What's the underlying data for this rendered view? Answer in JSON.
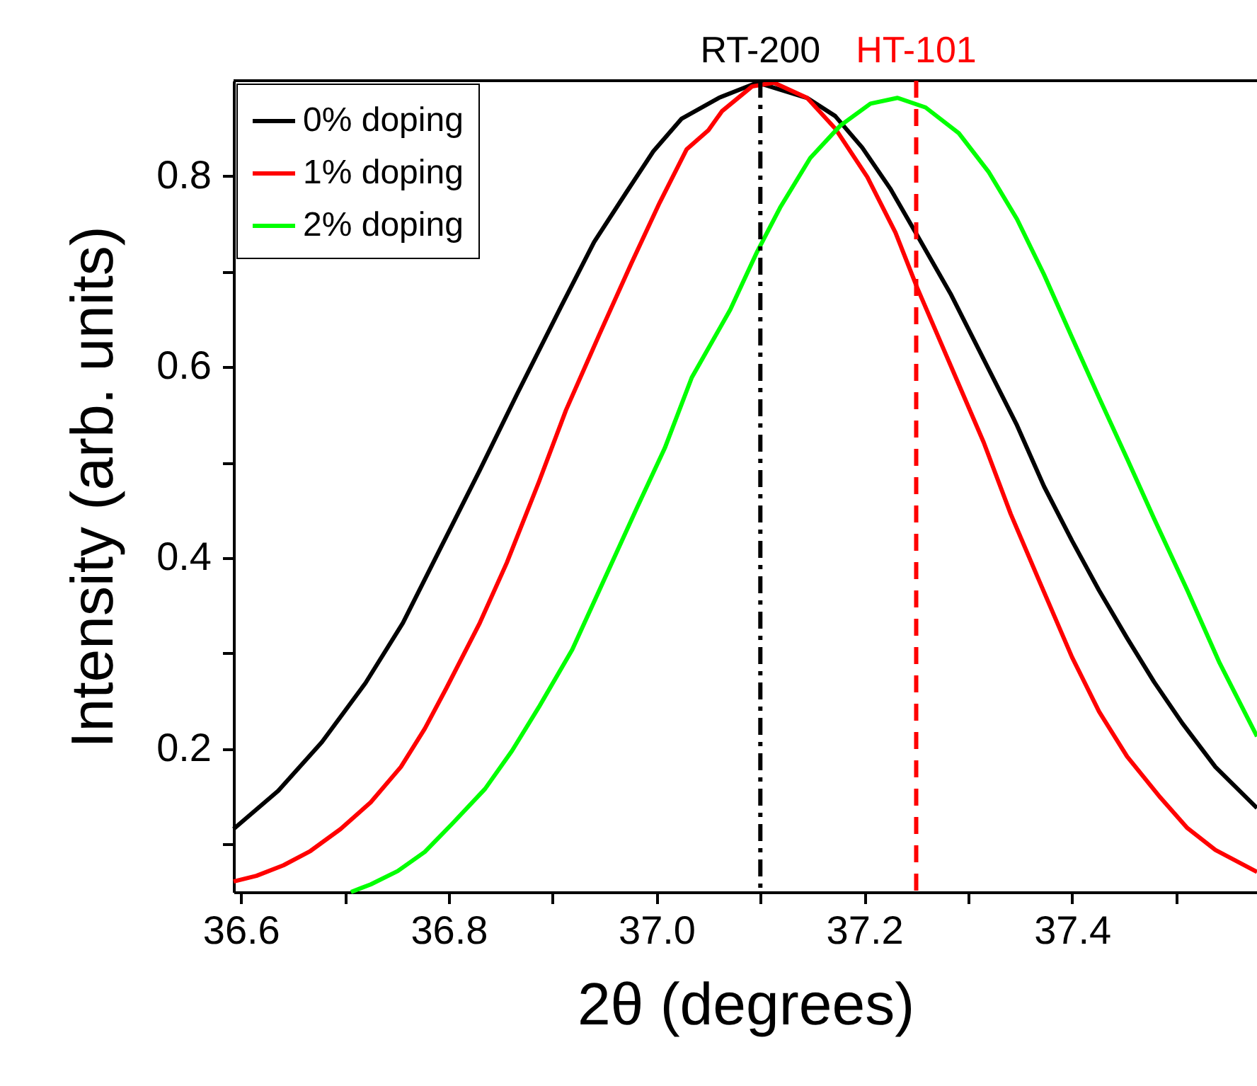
{
  "chart_data": {
    "type": "line",
    "xlabel": "2θ (degrees)",
    "ylabel": "Intensity (arb. units)",
    "xlim": [
      36.593,
      37.578
    ],
    "ylim": [
      0.05,
      0.9
    ],
    "xticks": [
      36.6,
      {
        "value": 36.7,
        "label": null
      },
      36.8,
      {
        "value": 36.9,
        "label": null
      },
      {
        "value": 37.0,
        "label": "37.0"
      },
      {
        "value": 37.1,
        "label": null
      },
      37.2,
      {
        "value": 37.3,
        "label": null
      },
      37.4,
      {
        "value": 37.5,
        "label": null
      }
    ],
    "yticks": [
      {
        "value": 0.1,
        "label": null
      },
      0.2,
      {
        "value": 0.3,
        "label": null
      },
      0.4,
      {
        "value": 0.5,
        "label": null
      },
      0.6,
      {
        "value": 0.7,
        "label": null
      },
      0.8
    ],
    "grid": false,
    "legend": "top left",
    "line_style": "solid",
    "marker": "none",
    "ref_lines": [
      {
        "axis": "x",
        "value": 37.1,
        "label": "RT-200",
        "color": "#000000",
        "line_style": "dashdot"
      },
      {
        "axis": "x",
        "value": 37.25,
        "label": "HT-101",
        "color": "#ff0000",
        "line_style": "dashed"
      }
    ],
    "series": [
      {
        "name": "0% doping",
        "color": "#000000",
        "x": [
          36.593,
          36.636,
          36.678,
          36.72,
          36.756,
          36.793,
          36.83,
          36.866,
          36.908,
          36.94,
          36.971,
          36.997,
          37.024,
          37.06,
          37.097,
          37.145,
          37.172,
          37.198,
          37.225,
          37.251,
          37.283,
          37.315,
          37.347,
          37.373,
          37.4,
          37.426,
          37.453,
          37.479,
          37.506,
          37.538,
          37.578
        ],
        "values": [
          0.116,
          0.156,
          0.207,
          0.269,
          0.332,
          0.412,
          0.492,
          0.572,
          0.663,
          0.731,
          0.783,
          0.826,
          0.86,
          0.882,
          0.898,
          0.882,
          0.863,
          0.83,
          0.787,
          0.738,
          0.677,
          0.608,
          0.539,
          0.475,
          0.418,
          0.366,
          0.316,
          0.27,
          0.227,
          0.181,
          0.138
        ]
      },
      {
        "name": "1% doping",
        "color": "#ff0000",
        "x": [
          36.593,
          36.615,
          36.641,
          36.667,
          36.696,
          36.725,
          36.754,
          36.777,
          36.798,
          36.83,
          36.856,
          36.887,
          36.913,
          36.945,
          36.976,
          37.003,
          37.029,
          37.05,
          37.063,
          37.092,
          37.113,
          37.145,
          37.172,
          37.203,
          37.23,
          37.251,
          37.283,
          37.315,
          37.341,
          37.368,
          37.4,
          37.426,
          37.453,
          37.485,
          37.511,
          37.538,
          37.578
        ],
        "values": [
          0.061,
          0.067,
          0.078,
          0.093,
          0.116,
          0.144,
          0.181,
          0.221,
          0.264,
          0.332,
          0.395,
          0.48,
          0.555,
          0.634,
          0.709,
          0.772,
          0.828,
          0.848,
          0.868,
          0.894,
          0.898,
          0.882,
          0.85,
          0.799,
          0.741,
          0.683,
          0.602,
          0.521,
          0.446,
          0.377,
          0.296,
          0.239,
          0.192,
          0.149,
          0.117,
          0.094,
          0.071
        ]
      },
      {
        "name": "2% doping",
        "color": "#00ff00",
        "x": [
          36.706,
          36.725,
          36.751,
          36.777,
          36.803,
          36.835,
          36.861,
          36.887,
          36.919,
          36.95,
          36.981,
          37.008,
          37.034,
          37.071,
          37.097,
          37.119,
          37.148,
          37.177,
          37.206,
          37.232,
          37.259,
          37.291,
          37.32,
          37.347,
          37.373,
          37.4,
          37.426,
          37.453,
          37.479,
          37.511,
          37.542,
          37.578
        ],
        "values": [
          0.05,
          0.058,
          0.072,
          0.092,
          0.121,
          0.158,
          0.198,
          0.244,
          0.304,
          0.378,
          0.452,
          0.515,
          0.589,
          0.66,
          0.721,
          0.767,
          0.819,
          0.853,
          0.876,
          0.882,
          0.872,
          0.845,
          0.804,
          0.755,
          0.697,
          0.631,
          0.568,
          0.504,
          0.441,
          0.366,
          0.29,
          0.213
        ]
      }
    ]
  }
}
